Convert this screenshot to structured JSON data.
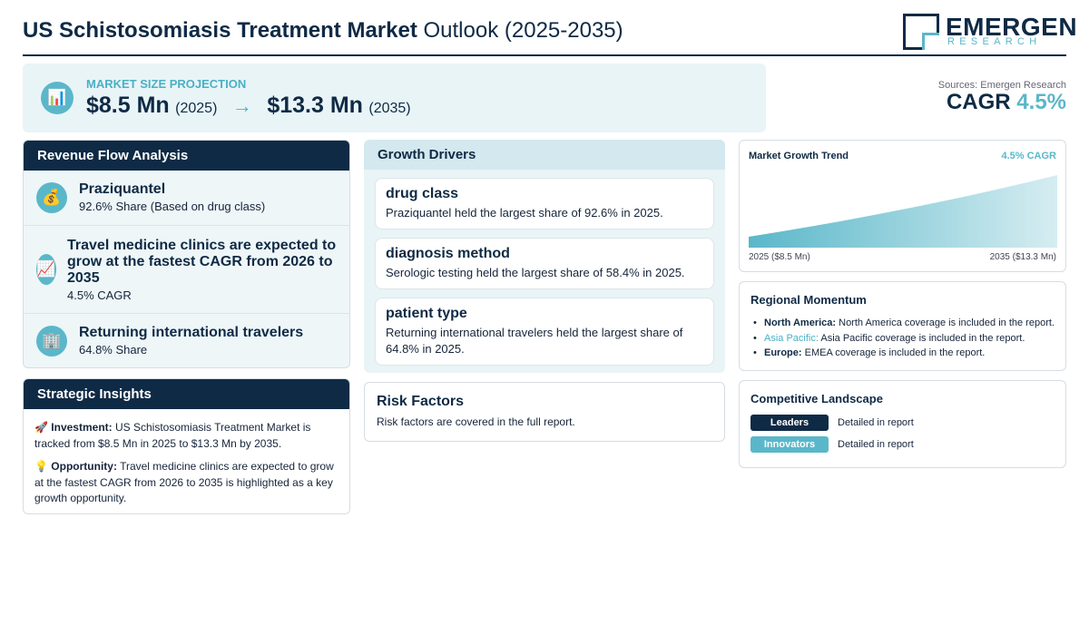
{
  "header": {
    "title_bold": "US Schistosomiasis Treatment Market",
    "title_rest": "Outlook (2025-2035)",
    "logo_name": "EMERGEN",
    "logo_sub": "RESEARCH"
  },
  "projection": {
    "icon": "bar-chart-icon",
    "label": "MARKET SIZE PROJECTION",
    "start_value": "$8.5 Mn",
    "start_year": "(2025)",
    "arrow": "→",
    "end_value": "$13.3 Mn",
    "end_year": "(2035)"
  },
  "cagr": {
    "sources": "Sources: Emergen Research",
    "label": "CAGR",
    "value": "4.5%"
  },
  "revenue_flow": {
    "heading": "Revenue Flow Analysis",
    "items": [
      {
        "icon": "money-bag-icon",
        "title": "Praziquantel",
        "subtitle": "92.6% Share (Based on drug class)"
      },
      {
        "icon": "trending-up-icon",
        "title": "Travel medicine clinics are expected to grow at the fastest CAGR from 2026 to 2035",
        "subtitle": "4.5% CAGR"
      },
      {
        "icon": "building-icon",
        "title": "Returning international travelers",
        "subtitle": "64.8% Share"
      }
    ]
  },
  "strategic": {
    "heading": "Strategic Insights",
    "investment_icon": "rocket-icon",
    "investment_label": "Investment:",
    "investment_text": "US Schistosomiasis Treatment Market is tracked from $8.5 Mn in 2025 to $13.3 Mn by 2035.",
    "opportunity_icon": "lightbulb-icon",
    "opportunity_label": "Opportunity:",
    "opportunity_text": "Travel medicine clinics are expected to grow at the fastest CAGR from 2026 to 2035 is highlighted as a key growth opportunity."
  },
  "drivers": {
    "heading": "Growth Drivers",
    "cards": [
      {
        "title": "drug class",
        "text": "Praziquantel held the largest share of 92.6% in 2025."
      },
      {
        "title": "diagnosis method",
        "text": "Serologic testing held the largest share of 58.4% in 2025."
      },
      {
        "title": "patient type",
        "text": "Returning international travelers held the largest share of 64.8% in 2025."
      }
    ]
  },
  "risk": {
    "heading": "Risk Factors",
    "text": "Risk factors are covered in the full report."
  },
  "trend": {
    "heading": "Market Growth Trend",
    "cagr_label": "4.5% CAGR",
    "start_label": "2025 ($8.5 Mn)",
    "end_label": "2035 ($13.3 Mn)"
  },
  "chart_data": {
    "type": "area",
    "title": "Market Growth Trend",
    "x": [
      2025,
      2035
    ],
    "y": [
      8.5,
      13.3
    ],
    "y_unit": "$ Mn",
    "area_color": "#5ab7c9"
  },
  "regional": {
    "heading": "Regional Momentum",
    "items": [
      {
        "name": "North America:",
        "text": "North America coverage is included in the report."
      },
      {
        "name": "Asia Pacific:",
        "text": "Asia Pacific coverage is included in the report."
      },
      {
        "name": "Europe:",
        "text": "EMEA coverage is included in the report."
      }
    ]
  },
  "competitive": {
    "heading": "Competitive Landscape",
    "rows": [
      {
        "tag": "Leaders",
        "desc": "Detailed in report"
      },
      {
        "tag": "Innovators",
        "desc": "Detailed in report"
      }
    ]
  },
  "colors": {
    "navy": "#0f2a45",
    "teal": "#5ab7c9",
    "panel_bg": "#e9f4f7"
  }
}
